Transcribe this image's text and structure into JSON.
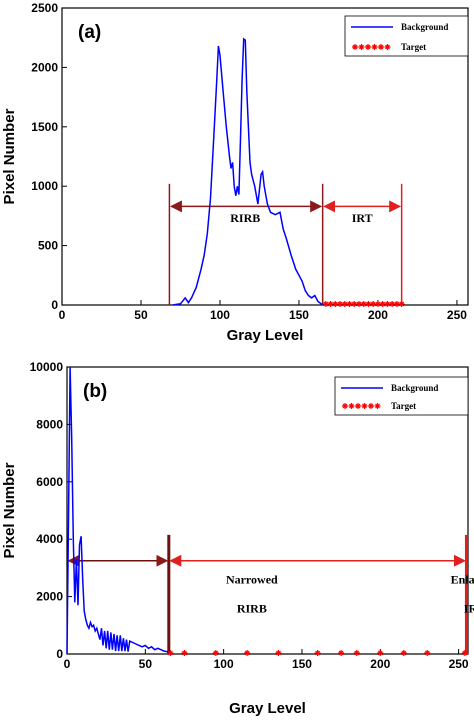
{
  "chart_data": [
    {
      "type": "line",
      "label": "(a)",
      "xlabel": "Gray Level",
      "ylabel": "Pixel Number",
      "xlim": [
        0,
        257
      ],
      "xticks": [
        0,
        50,
        100,
        150,
        200,
        250
      ],
      "ylim": [
        0,
        2500
      ],
      "yticks": [
        0,
        500,
        1000,
        1500,
        2000,
        2500
      ],
      "legend": "top-right",
      "series": [
        {
          "name": "Background",
          "color": "#0000ff",
          "style": "line",
          "x": [
            70,
            75,
            78,
            80,
            82,
            85,
            88,
            90,
            92,
            94,
            96,
            98,
            99,
            100,
            102,
            104,
            106,
            107,
            108,
            109,
            110,
            111,
            112,
            113,
            114,
            115,
            116,
            117,
            118,
            119,
            120,
            122,
            124,
            126,
            127,
            128,
            130,
            132,
            135,
            138,
            140,
            142,
            145,
            148,
            150,
            152,
            154,
            156,
            158,
            160,
            162,
            165
          ],
          "values": [
            0,
            10,
            60,
            20,
            60,
            150,
            300,
            420,
            600,
            900,
            1400,
            1900,
            2180,
            2100,
            1800,
            1500,
            1250,
            1150,
            1200,
            1000,
            920,
            1000,
            930,
            1400,
            1900,
            2240,
            2230,
            1800,
            1500,
            1200,
            1100,
            1000,
            850,
            1100,
            1120,
            1000,
            850,
            780,
            760,
            780,
            640,
            560,
            420,
            300,
            250,
            200,
            120,
            80,
            60,
            80,
            30,
            0
          ]
        },
        {
          "name": "Target",
          "color": "#ff0000",
          "style": "markers",
          "x": [
            167,
            170,
            173,
            176,
            179,
            182,
            185,
            188,
            191,
            194,
            197,
            200,
            203,
            206,
            209,
            212,
            215
          ],
          "values": [
            0,
            0,
            0,
            0,
            0,
            0,
            0,
            0,
            0,
            0,
            0,
            0,
            0,
            0,
            0,
            0,
            0
          ]
        }
      ],
      "vlines": [
        68,
        165,
        215
      ],
      "vline_colors": [
        "#8b1a1a",
        "#8b1a1a",
        "#e0201e"
      ],
      "annotations": [
        "RIRB",
        "IRT"
      ]
    },
    {
      "type": "line",
      "label": "(b)",
      "xlabel": "Gray Level",
      "ylabel": "Pixel Number",
      "xlim": [
        0,
        256
      ],
      "xticks": [
        0,
        50,
        100,
        150,
        200,
        250
      ],
      "ylim": [
        0,
        10000
      ],
      "yticks": [
        0,
        2000,
        4000,
        6000,
        8000,
        10000
      ],
      "legend": "top-right",
      "series": [
        {
          "name": "Background",
          "color": "#0000ff",
          "style": "line",
          "x": [
            0,
            1,
            2,
            3,
            4,
            5,
            6,
            7,
            8,
            9,
            10,
            11,
            12,
            13,
            14,
            15,
            16,
            17,
            18,
            19,
            20,
            21,
            22,
            23,
            24,
            25,
            26,
            27,
            28,
            29,
            30,
            31,
            32,
            33,
            34,
            35,
            36,
            37,
            38,
            39,
            40,
            42,
            44,
            46,
            48,
            50,
            52,
            54,
            56,
            58,
            60,
            62,
            64,
            65
          ],
          "values": [
            0,
            5000,
            10000,
            7500,
            4000,
            1800,
            3300,
            1700,
            3800,
            4100,
            2600,
            1500,
            1200,
            1000,
            900,
            1100,
            950,
            1000,
            800,
            900,
            700,
            500,
            900,
            300,
            800,
            200,
            800,
            150,
            750,
            150,
            700,
            100,
            650,
            100,
            650,
            100,
            550,
            100,
            500,
            80,
            450,
            400,
            350,
            300,
            250,
            300,
            200,
            250,
            150,
            200,
            150,
            100,
            80,
            0
          ]
        },
        {
          "name": "Target",
          "color": "#ff0000",
          "style": "markers",
          "x": [
            66,
            75,
            95,
            115,
            135,
            160,
            175,
            185,
            200,
            215,
            230,
            254
          ],
          "values": [
            0,
            0,
            0,
            0,
            0,
            0,
            0,
            0,
            0,
            0,
            0,
            0
          ]
        }
      ],
      "vlines": [
        0,
        65,
        255
      ],
      "vline_colors": [
        "#6b0f0f",
        "#6b0f0f",
        "#e0201e"
      ],
      "annotations": [
        "Narrowed",
        "RIRB",
        "Enlarged",
        "IRT"
      ]
    }
  ]
}
